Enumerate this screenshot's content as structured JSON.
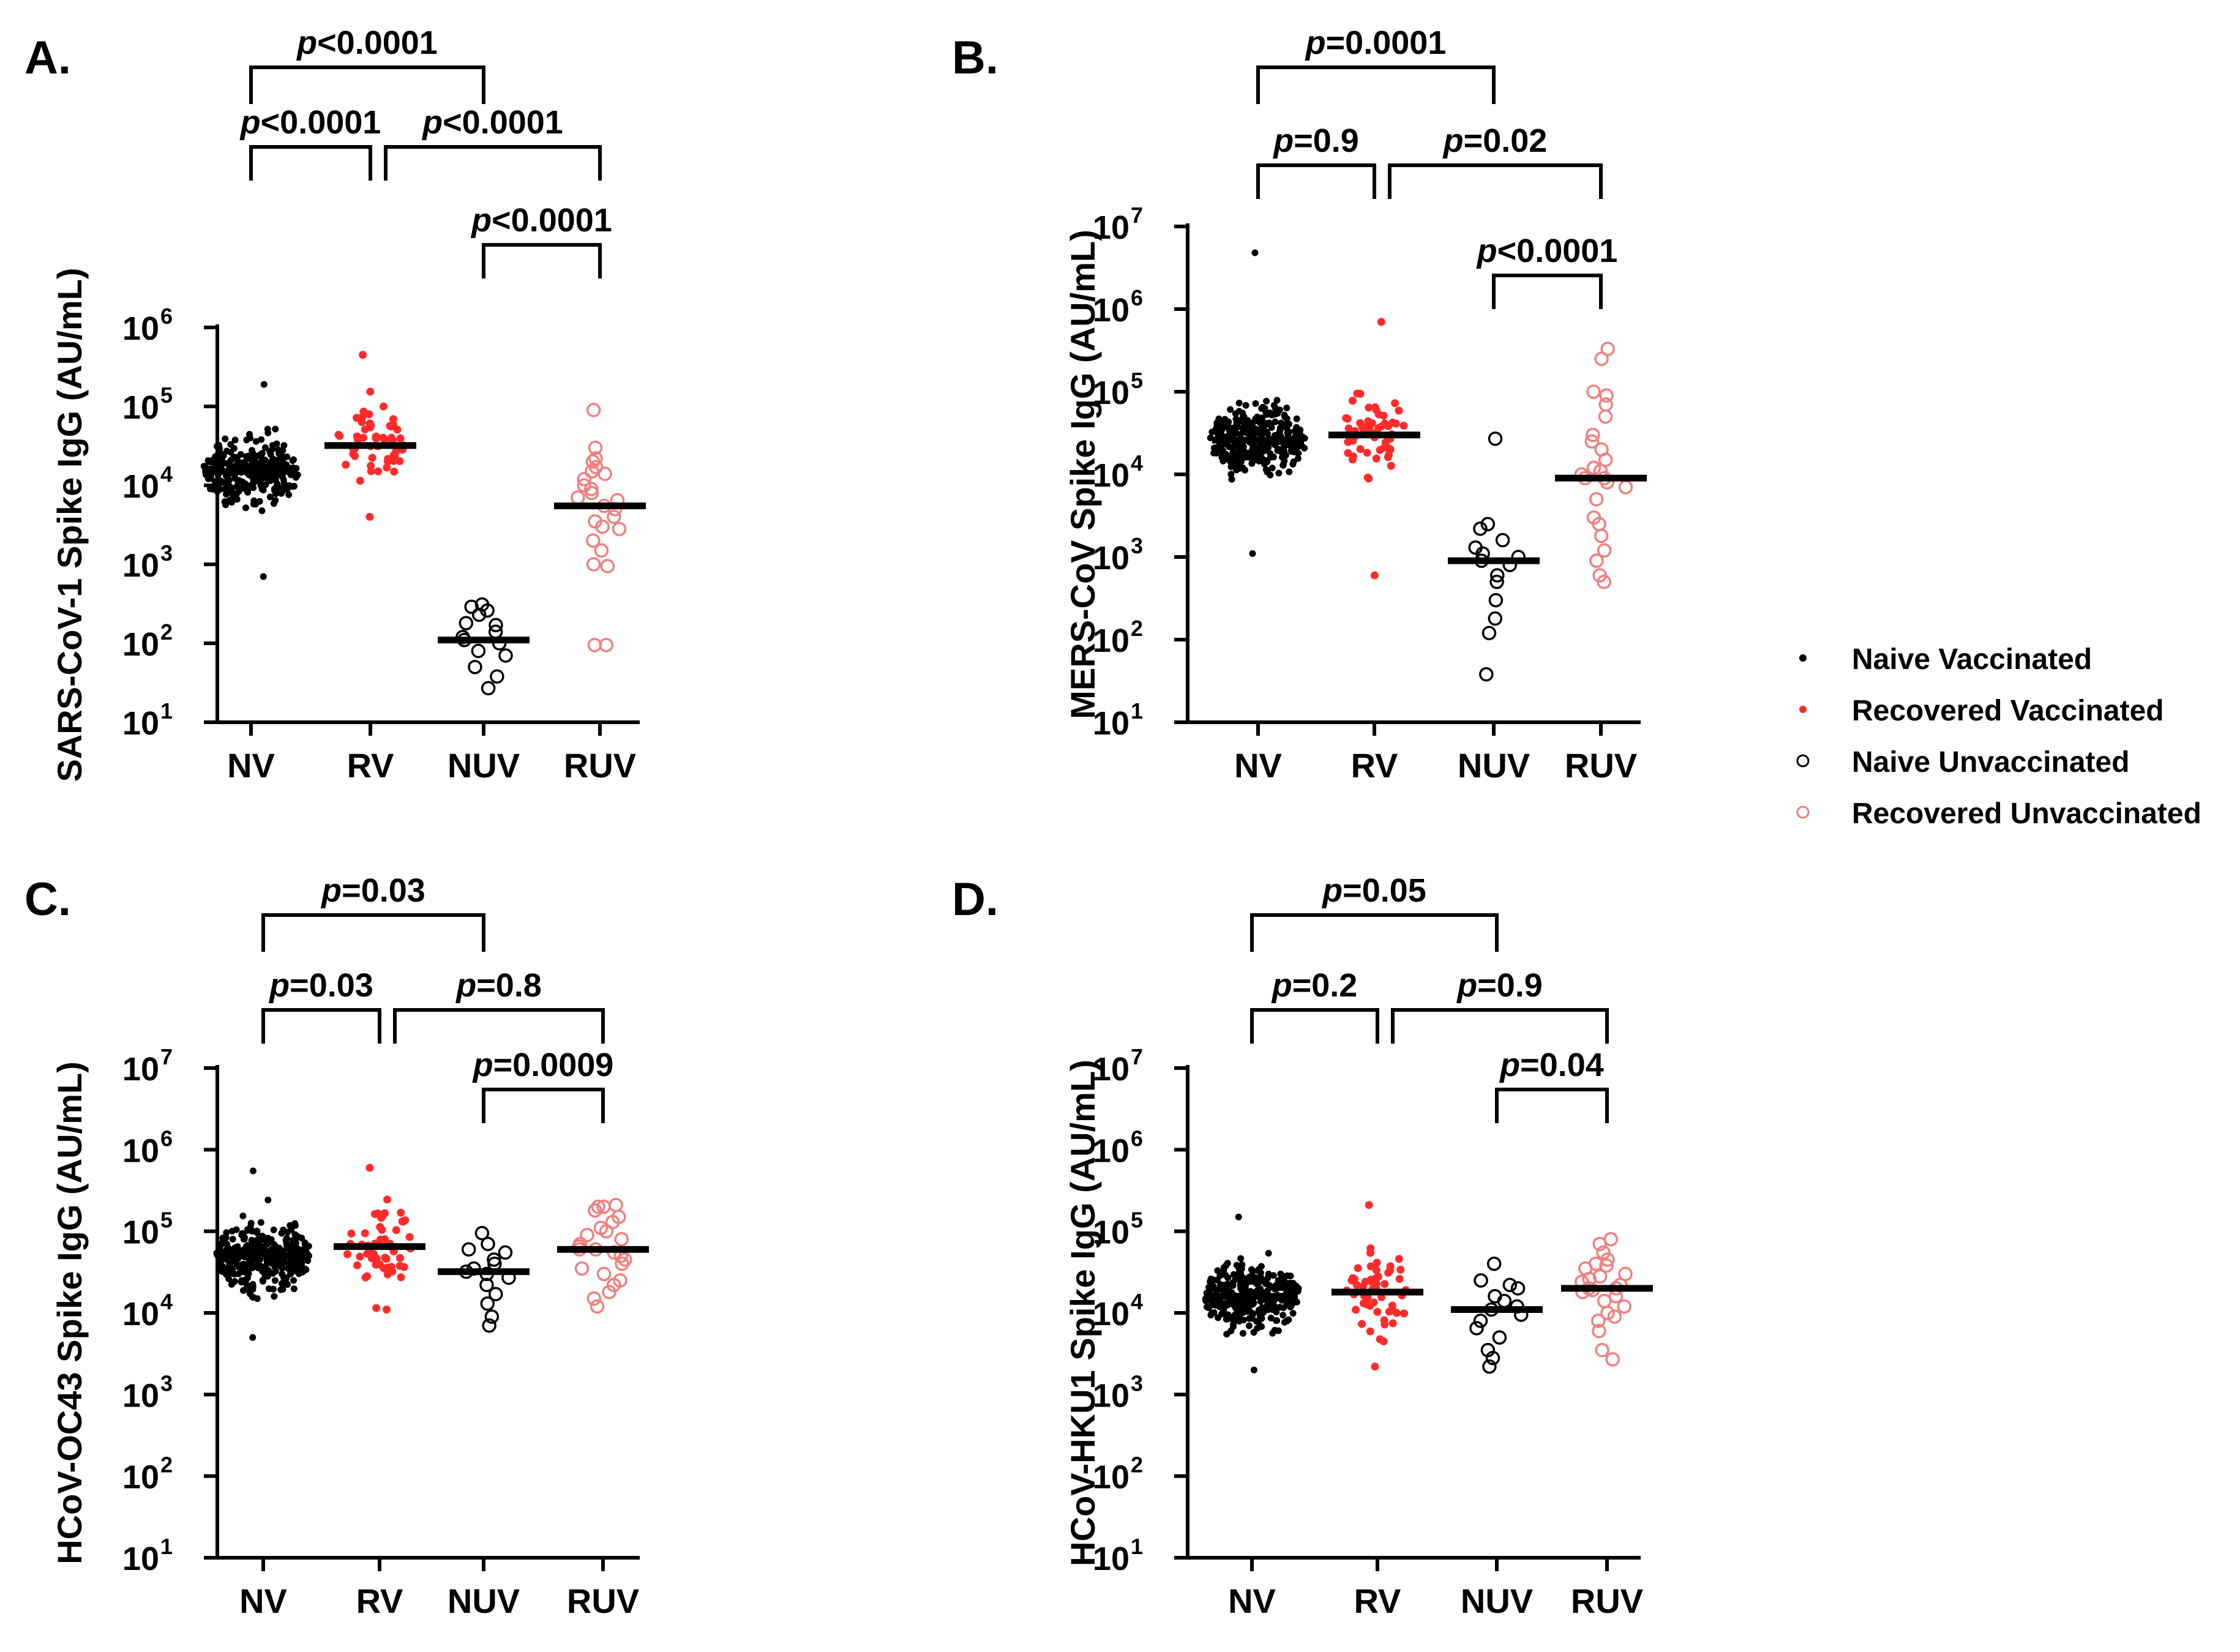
{
  "colors": {
    "naive": "#000000",
    "recovered": "#ff2b2b",
    "recovered_open": "#f08080"
  },
  "legend": [
    {
      "key": "nv",
      "label": "Naive Vaccinated",
      "marker": "filled",
      "color": "#000000"
    },
    {
      "key": "rv",
      "label": "Recovered Vaccinated",
      "marker": "filled",
      "color": "#ff2b2b"
    },
    {
      "key": "nuv",
      "label": "Naive Unvaccinated",
      "marker": "open",
      "color": "#000000"
    },
    {
      "key": "ruv",
      "label": "Recovered Unvaccinated",
      "marker": "open",
      "color": "#f08080"
    }
  ],
  "chart_data": [
    {
      "panel": "A.",
      "type": "scatter",
      "ylabel": "SARS-CoV-1 Spike IgG (AU/mL)",
      "categories": [
        "NV",
        "RV",
        "NUV",
        "RUV"
      ],
      "yscale": "log",
      "ylim_exp": [
        1,
        6
      ],
      "yticks": [
        {
          "base": "10",
          "exp": "1"
        },
        {
          "base": "10",
          "exp": "2"
        },
        {
          "base": "10",
          "exp": "3"
        },
        {
          "base": "10",
          "exp": "4"
        },
        {
          "base": "10",
          "exp": "5"
        },
        {
          "base": "10",
          "exp": "6"
        }
      ],
      "groups": [
        {
          "name": "NV",
          "n": 300,
          "median": 15000,
          "min": 700,
          "max": 190000
        },
        {
          "name": "RV",
          "n": 55,
          "median": 32000,
          "min": 4000,
          "max": 450000
        },
        {
          "name": "NUV",
          "n": 15,
          "median": 110,
          "values": [
            27,
            38,
            50,
            70,
            80,
            100,
            110,
            120,
            140,
            170,
            180,
            230,
            260,
            310,
            290
          ]
        },
        {
          "name": "RUV",
          "n": 25,
          "median": 5500,
          "values": [
            95,
            95,
            950,
            1000,
            1500,
            2000,
            2800,
            3000,
            3500,
            4000,
            5000,
            5500,
            6500,
            7000,
            8000,
            9000,
            10000,
            12000,
            14000,
            15000,
            17000,
            20000,
            22000,
            30000,
            90000
          ]
        }
      ],
      "comparisons": [
        {
          "a": 0,
          "b": 2,
          "level": 0,
          "p": "<0.0001"
        },
        {
          "a": 0,
          "b": 1,
          "level": 1,
          "p": "<0.0001"
        },
        {
          "a": 1,
          "b": 3,
          "level": 1,
          "p": "<0.0001"
        },
        {
          "a": 2,
          "b": 3,
          "level": 2,
          "p": "<0.0001"
        }
      ]
    },
    {
      "panel": "B.",
      "type": "scatter",
      "ylabel": "MERS-CoV Spike IgG (AU/mL)",
      "categories": [
        "NV",
        "RV",
        "NUV",
        "RUV"
      ],
      "yscale": "log",
      "ylim_exp": [
        1,
        7
      ],
      "yticks": [
        {
          "base": "10",
          "exp": "1"
        },
        {
          "base": "10",
          "exp": "2"
        },
        {
          "base": "10",
          "exp": "3"
        },
        {
          "base": "10",
          "exp": "4"
        },
        {
          "base": "10",
          "exp": "5"
        },
        {
          "base": "10",
          "exp": "6"
        },
        {
          "base": "10",
          "exp": "7"
        }
      ],
      "groups": [
        {
          "name": "NV",
          "n": 300,
          "median": 26000,
          "min": 1100,
          "max": 4800000
        },
        {
          "name": "RV",
          "n": 55,
          "median": 30000,
          "min": 600,
          "max": 700000
        },
        {
          "name": "NUV",
          "n": 15,
          "median": 900,
          "values": [
            38,
            120,
            180,
            300,
            500,
            600,
            800,
            900,
            1000,
            1100,
            1300,
            1600,
            2200,
            2500,
            27000
          ]
        },
        {
          "name": "RUV",
          "n": 25,
          "median": 9000,
          "values": [
            500,
            600,
            900,
            1200,
            1800,
            2500,
            3000,
            5000,
            7000,
            8000,
            9000,
            9000,
            10000,
            11000,
            12000,
            15000,
            20000,
            30000,
            50000,
            70000,
            90000,
            100000,
            250000,
            330000,
            25000
          ]
        }
      ],
      "comparisons": [
        {
          "a": 0,
          "b": 2,
          "level": 0,
          "p": "=0.0001"
        },
        {
          "a": 0,
          "b": 1,
          "level": 1,
          "p": "=0.9"
        },
        {
          "a": 1,
          "b": 3,
          "level": 1,
          "p": "=0.02"
        },
        {
          "a": 2,
          "b": 3,
          "level": 2,
          "p": "<0.0001"
        }
      ]
    },
    {
      "panel": "C.",
      "type": "scatter",
      "ylabel": "HCoV-OC43 Spike IgG (AU/mL)",
      "categories": [
        "NV",
        "RV",
        "NUV",
        "RUV"
      ],
      "yscale": "log",
      "ylim_exp": [
        1,
        7
      ],
      "yticks": [
        {
          "base": "10",
          "exp": "1"
        },
        {
          "base": "10",
          "exp": "2"
        },
        {
          "base": "10",
          "exp": "3"
        },
        {
          "base": "10",
          "exp": "4"
        },
        {
          "base": "10",
          "exp": "5"
        },
        {
          "base": "10",
          "exp": "6"
        },
        {
          "base": "10",
          "exp": "7"
        }
      ],
      "groups": [
        {
          "name": "NV",
          "n": 300,
          "median": 50000,
          "min": 5000,
          "max": 550000
        },
        {
          "name": "RV",
          "n": 55,
          "median": 65000,
          "min": 11000,
          "max": 600000
        },
        {
          "name": "NUV",
          "n": 15,
          "median": 32000,
          "values": [
            7000,
            9000,
            13000,
            17000,
            22000,
            27000,
            30000,
            32000,
            35000,
            40000,
            45000,
            55000,
            60000,
            70000,
            95000
          ]
        },
        {
          "name": "RUV",
          "n": 25,
          "median": 60000,
          "values": [
            12000,
            15000,
            18000,
            22000,
            25000,
            30000,
            35000,
            40000,
            45000,
            50000,
            55000,
            60000,
            60000,
            65000,
            70000,
            80000,
            90000,
            100000,
            110000,
            130000,
            150000,
            180000,
            200000,
            200000,
            210000
          ]
        }
      ],
      "comparisons": [
        {
          "a": 0,
          "b": 2,
          "level": 0,
          "p": "=0.03"
        },
        {
          "a": 0,
          "b": 1,
          "level": 1,
          "p": "=0.03"
        },
        {
          "a": 1,
          "b": 3,
          "level": 1,
          "p": "=0.8"
        },
        {
          "a": 2,
          "b": 3,
          "level": 2,
          "p": "=0.0009"
        }
      ]
    },
    {
      "panel": "D.",
      "type": "scatter",
      "ylabel": "HCoV-HKU1 Spike IgG (AU/mL)",
      "categories": [
        "NV",
        "RV",
        "NUV",
        "RUV"
      ],
      "yscale": "log",
      "ylim_exp": [
        1,
        7
      ],
      "yticks": [
        {
          "base": "10",
          "exp": "1"
        },
        {
          "base": "10",
          "exp": "2"
        },
        {
          "base": "10",
          "exp": "3"
        },
        {
          "base": "10",
          "exp": "4"
        },
        {
          "base": "10",
          "exp": "5"
        },
        {
          "base": "10",
          "exp": "6"
        },
        {
          "base": "10",
          "exp": "7"
        }
      ],
      "groups": [
        {
          "name": "NV",
          "n": 300,
          "median": 16000,
          "min": 2000,
          "max": 150000
        },
        {
          "name": "RV",
          "n": 55,
          "median": 18000,
          "min": 2200,
          "max": 210000
        },
        {
          "name": "NUV",
          "n": 15,
          "median": 11000,
          "values": [
            2200,
            2800,
            3500,
            5000,
            6500,
            8000,
            9500,
            11000,
            12000,
            14000,
            16000,
            20000,
            22000,
            25000,
            40000
          ]
        },
        {
          "name": "RUV",
          "n": 25,
          "median": 20000,
          "values": [
            2700,
            3500,
            6000,
            8000,
            9000,
            10000,
            12000,
            14000,
            16000,
            18000,
            19000,
            20000,
            20000,
            22000,
            24000,
            26000,
            28000,
            30000,
            35000,
            38000,
            40000,
            45000,
            55000,
            70000,
            80000
          ]
        }
      ],
      "comparisons": [
        {
          "a": 0,
          "b": 2,
          "level": 0,
          "p": "=0.05"
        },
        {
          "a": 0,
          "b": 1,
          "level": 1,
          "p": "=0.2"
        },
        {
          "a": 1,
          "b": 3,
          "level": 1,
          "p": "=0.9"
        },
        {
          "a": 2,
          "b": 3,
          "level": 2,
          "p": "=0.04"
        }
      ]
    }
  ]
}
